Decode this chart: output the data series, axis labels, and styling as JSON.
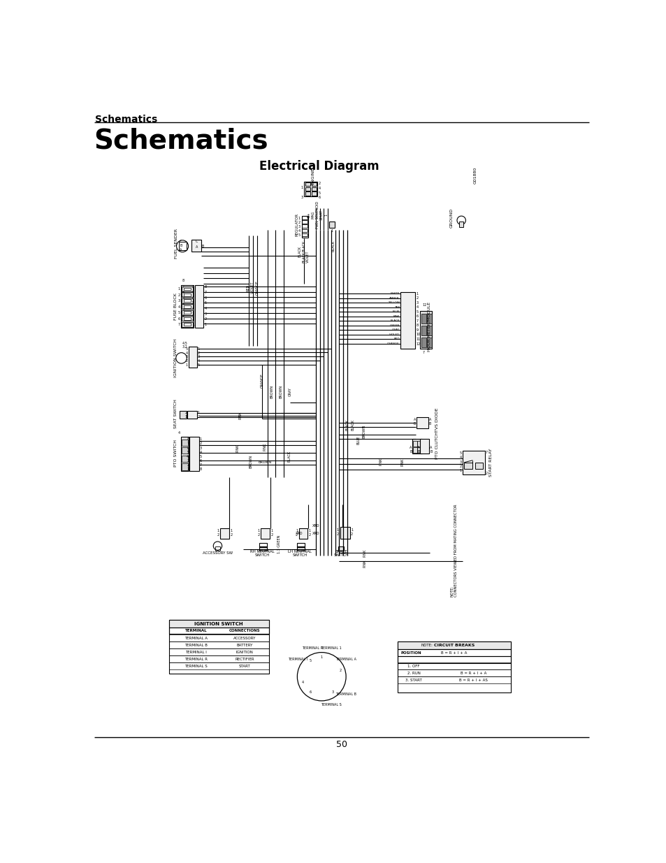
{
  "page_title_small": "Schematics",
  "page_title_large": "Schematics",
  "diagram_title": "Electrical Diagram",
  "page_number": "50",
  "bg_color": "#ffffff",
  "title_small_fontsize": 10,
  "title_large_fontsize": 28,
  "diagram_title_fontsize": 12,
  "page_number_fontsize": 9,
  "wire_labels": {
    "top_center_black": "BLACK",
    "violet": "VIOLET",
    "red": "RED",
    "orange": "ORANGE",
    "brown": "BROWN",
    "gray": "GRAY",
    "pink": "PINK",
    "black": "BLACK",
    "blue": "BLUE",
    "green_1_3": "1.3 GREEN",
    "xrd": "XRD"
  },
  "hm_labels": [
    "WHITE",
    "AMBER",
    "YELLOW",
    "TAN",
    "BLUE",
    "PINK",
    "BLACK",
    "GREEN",
    "GRAY",
    "VIOLET",
    "RED",
    "ORANGE"
  ],
  "ignition_rows": [
    [
      "TERMINAL A",
      "ACCESSORY"
    ],
    [
      "TERMINAL B",
      "BATTERY"
    ],
    [
      "TERMINAL I",
      "IGNITION"
    ],
    [
      "TERMINAL R",
      "RECTIFIER"
    ],
    [
      "TERMINAL S",
      "START"
    ]
  ],
  "position_rows": [
    [
      "1. OFF",
      ""
    ],
    [
      "2. RUN",
      "B = R + I + A"
    ],
    [
      "3. START",
      "B = R + I + AS"
    ]
  ]
}
